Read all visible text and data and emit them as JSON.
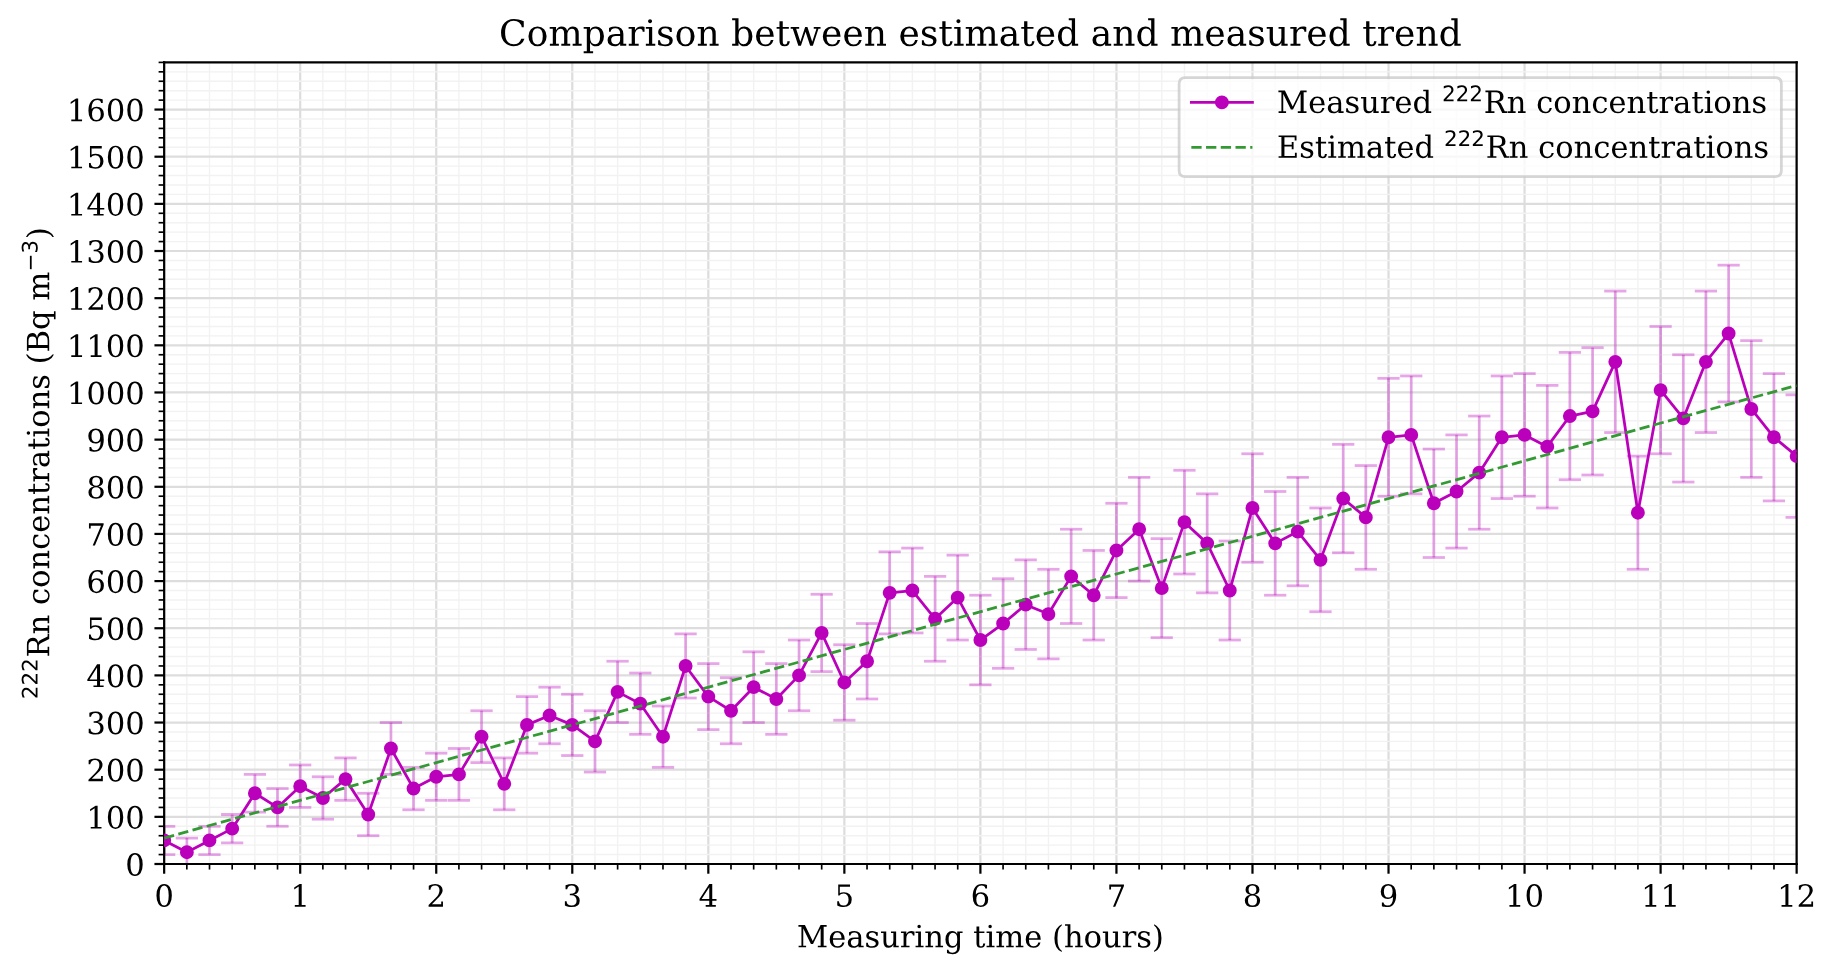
{
  "chart_data": {
    "type": "line",
    "title": "Comparison between estimated and measured trend",
    "xlabel": "Measuring time (hours)",
    "ylabel": "$^{222}$Rn concentrations (Bq m$^{−3}$)",
    "xlim": [
      0,
      12
    ],
    "ylim": [
      0,
      1700
    ],
    "xticks": [
      0,
      1,
      2,
      3,
      4,
      5,
      6,
      7,
      8,
      9,
      10,
      11,
      12
    ],
    "yticks": [
      0,
      100,
      200,
      300,
      400,
      500,
      600,
      700,
      800,
      900,
      1000,
      1100,
      1200,
      1300,
      1400,
      1500,
      1600
    ],
    "grid": true,
    "legend": "top right",
    "series": [
      {
        "name": "Measured $^{222}$Rn concentrations",
        "color": "#bb00bb",
        "marker": "circle",
        "line_style": "solid",
        "x": [
          0,
          0.167,
          0.333,
          0.5,
          0.667,
          0.833,
          1.0,
          1.167,
          1.333,
          1.5,
          1.667,
          1.833,
          2.0,
          2.167,
          2.333,
          2.5,
          2.667,
          2.833,
          3.0,
          3.167,
          3.333,
          3.5,
          3.667,
          3.833,
          4.0,
          4.167,
          4.333,
          4.5,
          4.667,
          4.833,
          5.0,
          5.167,
          5.333,
          5.5,
          5.667,
          5.833,
          6.0,
          6.167,
          6.333,
          6.5,
          6.667,
          6.833,
          7.0,
          7.167,
          7.333,
          7.5,
          7.667,
          7.833,
          8.0,
          8.167,
          8.333,
          8.5,
          8.667,
          8.833,
          9.0,
          9.167,
          9.333,
          9.5,
          9.667,
          9.833,
          10.0,
          10.167,
          10.333,
          10.5,
          10.667,
          10.833,
          11.0,
          11.167,
          11.333,
          11.5,
          11.667,
          11.833,
          12.0
        ],
        "values": [
          50,
          25,
          50,
          75,
          150,
          120,
          165,
          140,
          180,
          105,
          245,
          160,
          185,
          190,
          270,
          170,
          295,
          315,
          295,
          260,
          365,
          340,
          270,
          420,
          355,
          325,
          375,
          350,
          400,
          490,
          385,
          430,
          575,
          580,
          520,
          565,
          475,
          510,
          550,
          530,
          610,
          570,
          665,
          710,
          585,
          725,
          680,
          580,
          755,
          680,
          705,
          645,
          775,
          735,
          905,
          910,
          765,
          790,
          830,
          905,
          910,
          885,
          950,
          960,
          1065,
          745,
          1005,
          945,
          1065,
          1125,
          965,
          905,
          865
        ],
        "errors": [
          30,
          30,
          30,
          30,
          40,
          40,
          45,
          45,
          45,
          45,
          55,
          45,
          50,
          55,
          55,
          55,
          60,
          60,
          65,
          65,
          65,
          65,
          65,
          68,
          70,
          70,
          75,
          75,
          75,
          82,
          80,
          80,
          87,
          90,
          90,
          90,
          95,
          95,
          95,
          95,
          100,
          95,
          100,
          110,
          105,
          110,
          105,
          105,
          115,
          110,
          115,
          110,
          115,
          110,
          125,
          125,
          115,
          120,
          120,
          130,
          130,
          130,
          135,
          135,
          150,
          120,
          135,
          135,
          150,
          145,
          145,
          135,
          130
        ]
      },
      {
        "name": "Estimated $^{222}$Rn concentrations",
        "color": "#339933",
        "marker": "none",
        "line_style": "dashed",
        "x": [
          0,
          12
        ],
        "values": [
          55,
          1015
        ]
      }
    ]
  }
}
